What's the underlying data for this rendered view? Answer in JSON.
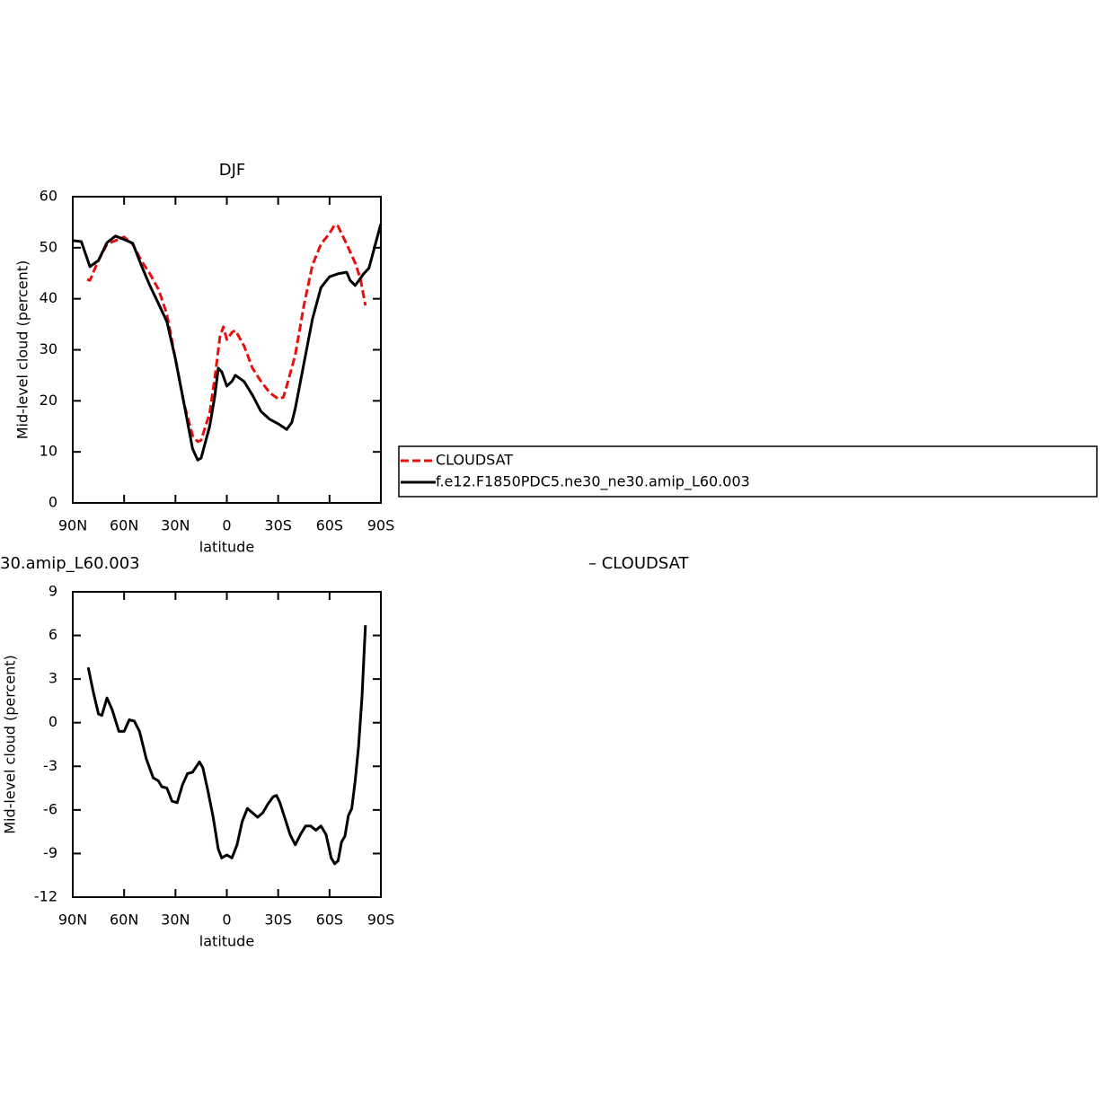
{
  "chart_data": [
    {
      "type": "line",
      "title": "DJF",
      "x_label": "latitude",
      "y_label": "Mid-level cloud (percent)",
      "xlim": [
        90,
        -90
      ],
      "ylim": [
        0,
        60
      ],
      "xticks": [
        {
          "value": 90,
          "label": "90N"
        },
        {
          "value": 60,
          "label": "60N"
        },
        {
          "value": 30,
          "label": "30N"
        },
        0,
        {
          "value": -30,
          "label": "30S"
        },
        {
          "value": -60,
          "label": "60S"
        },
        {
          "value": -90,
          "label": "90S"
        }
      ],
      "yticks": [
        0,
        10,
        20,
        30,
        40,
        50,
        60
      ],
      "legend": true,
      "series": [
        {
          "name": "CLOUDSAT",
          "color": "#e8100f",
          "dash": true,
          "x": [
            81.6,
            80,
            75,
            70,
            65,
            60,
            55,
            50,
            45,
            40,
            35,
            30,
            25,
            20,
            17,
            15,
            10,
            7,
            4,
            2,
            0,
            -3,
            -5,
            -10,
            -15,
            -20,
            -25,
            -30,
            -33,
            -35,
            -40,
            -45,
            -50,
            -55,
            -60,
            -63,
            -65,
            -70,
            -75,
            -78,
            -81
          ],
          "values": [
            43.8,
            43.6,
            47.5,
            50.7,
            51.4,
            52.1,
            50.7,
            47.5,
            44.9,
            41.9,
            37,
            28.2,
            19.4,
            13.2,
            12,
            12.3,
            17.6,
            24.6,
            32.6,
            34.5,
            32,
            33.4,
            33.8,
            30.8,
            26.4,
            23.8,
            21.6,
            20.4,
            20.7,
            22.9,
            29,
            38.7,
            46.6,
            50.7,
            52.8,
            54.5,
            54.2,
            50.7,
            47,
            44,
            38.7
          ]
        },
        {
          "name": "f.e12.F1850PDC5.ne30_ne30.amip_L60.003",
          "color": "#000000",
          "dash": false,
          "x": [
            90,
            85,
            80,
            75,
            70,
            65,
            60,
            55,
            50,
            45,
            40,
            35,
            30,
            25,
            20,
            17,
            15,
            10,
            7,
            5,
            3,
            0,
            -3,
            -5,
            -10,
            -15,
            -20,
            -25,
            -30,
            -35,
            -38,
            -40,
            -45,
            -50,
            -55,
            -60,
            -65,
            -70,
            -72,
            -75,
            -80,
            -83,
            -87,
            -90
          ],
          "values": [
            51.4,
            51.2,
            46.3,
            47.5,
            51,
            52.3,
            51.6,
            50.9,
            46.6,
            42.6,
            39.1,
            35.5,
            28.2,
            19.4,
            10.6,
            8.4,
            8.8,
            15,
            21,
            26.4,
            25.7,
            22.9,
            23.8,
            25,
            23.8,
            21.1,
            17.9,
            16.4,
            15.5,
            14.4,
            15.8,
            18.5,
            27.3,
            36,
            42.2,
            44.3,
            44.9,
            45.2,
            43.6,
            42.6,
            44.9,
            46,
            51,
            54.7
          ]
        }
      ]
    },
    {
      "type": "line",
      "titles": [
        "30.amip_L60.003",
        "– CLOUDSAT"
      ],
      "x_label": "latitude",
      "y_label": "Mid-level cloud (percent)",
      "xlim": [
        90,
        -90
      ],
      "ylim": [
        -12,
        9
      ],
      "xticks": [
        {
          "value": 90,
          "label": "90N"
        },
        {
          "value": 60,
          "label": "60N"
        },
        {
          "value": 30,
          "label": "30N"
        },
        0,
        {
          "value": -30,
          "label": "30S"
        },
        {
          "value": -60,
          "label": "60S"
        },
        {
          "value": -90,
          "label": "90S"
        }
      ],
      "yticks": [
        -12,
        -9,
        -6,
        -3,
        0,
        3,
        6,
        9
      ],
      "series": [
        {
          "color": "#000000",
          "dash": false,
          "x": [
            81,
            78,
            75,
            73,
            70,
            67,
            63,
            60,
            57,
            54,
            51,
            47,
            43,
            40,
            38,
            35,
            32,
            29,
            26,
            23,
            20,
            16,
            14,
            11,
            8,
            5,
            3,
            0,
            -3,
            -6,
            -9,
            -12,
            -15,
            -18,
            -21,
            -24,
            -27,
            -29,
            -31,
            -34,
            -37,
            -40,
            -43,
            -46,
            -49,
            -52,
            -55,
            -58,
            -61,
            -63,
            -65,
            -67,
            -69,
            -71,
            -73,
            -75,
            -77,
            -79,
            -81
          ],
          "values": [
            3.8,
            2.1,
            0.6,
            0.5,
            1.7,
            0.9,
            -0.6,
            -0.6,
            0.2,
            0.1,
            -0.6,
            -2.5,
            -3.8,
            -4,
            -4.4,
            -4.5,
            -5.4,
            -5.5,
            -4.3,
            -3.5,
            -3.4,
            -2.7,
            -3.1,
            -4.7,
            -6.5,
            -8.7,
            -9.3,
            -9.1,
            -9.3,
            -8.4,
            -6.8,
            -5.9,
            -6.2,
            -6.5,
            -6.2,
            -5.6,
            -5.1,
            -5,
            -5.5,
            -6.6,
            -7.7,
            -8.4,
            -7.7,
            -7.1,
            -7.1,
            -7.4,
            -7.1,
            -7.7,
            -9.3,
            -9.7,
            -9.5,
            -8.2,
            -7.8,
            -6.4,
            -5.9,
            -4,
            -1.6,
            1.8,
            6.7
          ]
        }
      ]
    }
  ]
}
